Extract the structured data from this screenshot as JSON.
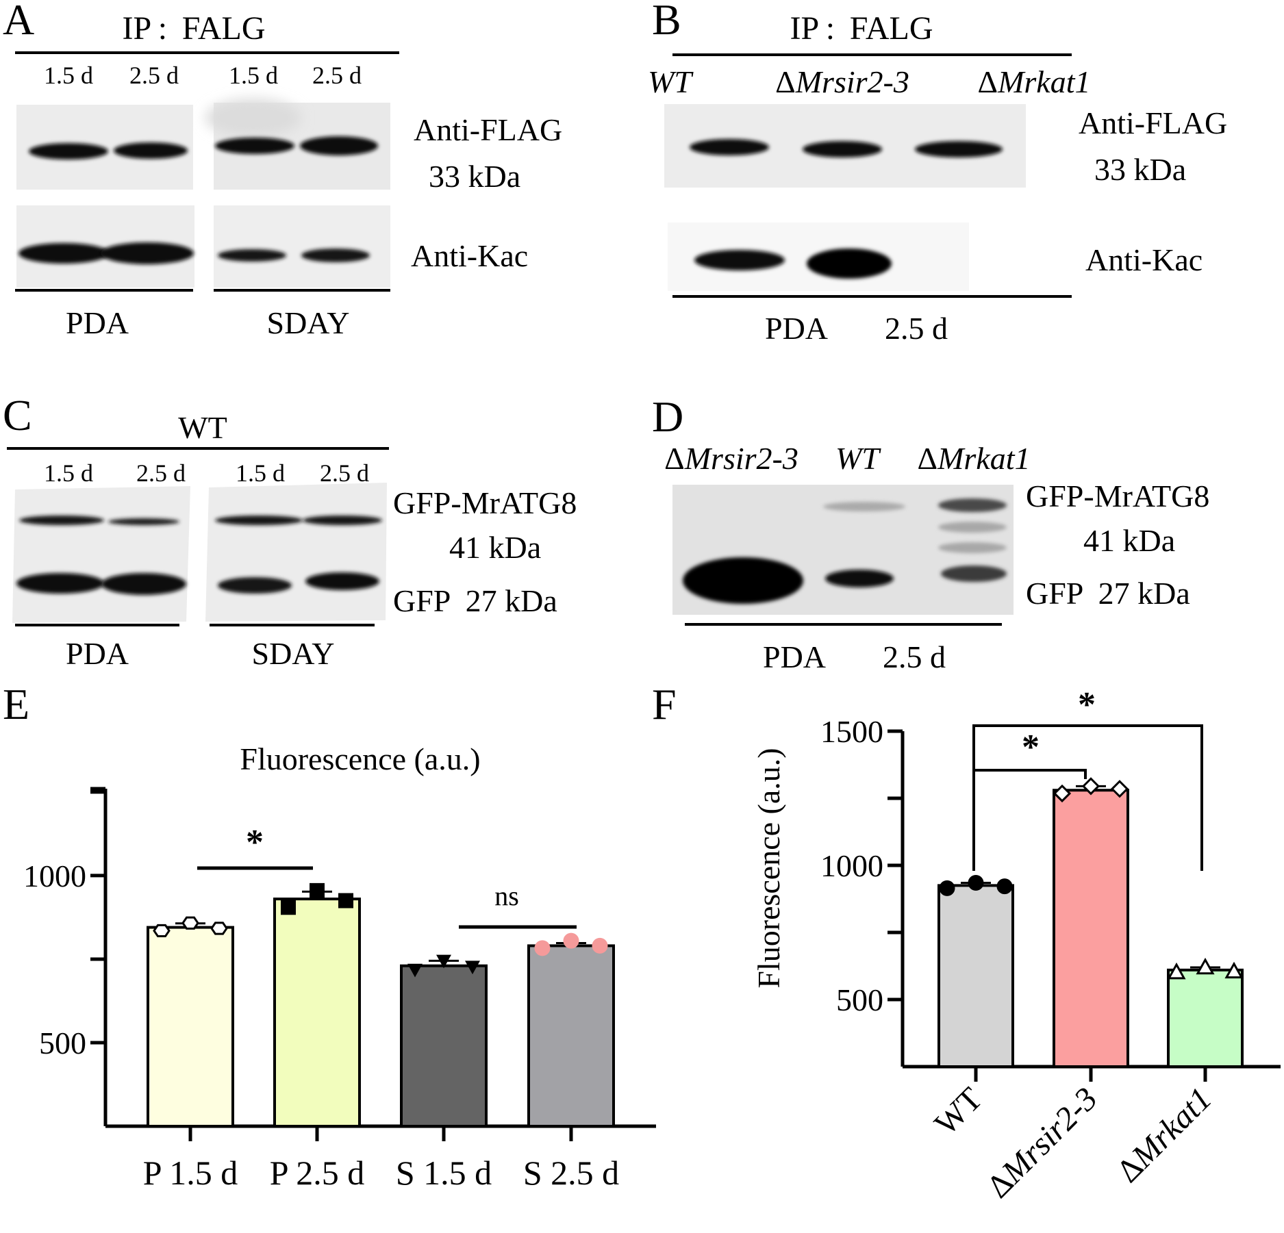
{
  "panel_a": {
    "letter": "A",
    "title": "IP :  FALG",
    "lanes": [
      "1.5 d",
      "2.5 d",
      "1.5 d",
      "2.5 d"
    ],
    "blot_labels": [
      "Anti-FLAG",
      "33 kDa",
      "Anti-Kac"
    ],
    "groups": [
      "PDA",
      "SDAY"
    ]
  },
  "panel_b": {
    "letter": "B",
    "title": "IP :  FALG",
    "strains": [
      {
        "prefix": "",
        "name": "WT"
      },
      {
        "prefix": "Δ",
        "name": "Mrsir2-3"
      },
      {
        "prefix": "Δ",
        "name": "Mrkat1"
      }
    ],
    "blot_labels": [
      "Anti-FLAG",
      "33 kDa",
      "Anti-Kac"
    ],
    "footer": [
      "PDA",
      "2.5 d"
    ]
  },
  "panel_c": {
    "letter": "C",
    "title": "WT",
    "lanes": [
      "1.5 d",
      "2.5 d",
      "1.5 d",
      "2.5 d"
    ],
    "blot_labels": [
      "GFP-MrATG8",
      "41 kDa",
      "GFP  27 kDa"
    ],
    "groups": [
      "PDA",
      "SDAY"
    ]
  },
  "panel_d": {
    "letter": "D",
    "strains": [
      {
        "prefix": "Δ",
        "name": "Mrsir2-3"
      },
      {
        "prefix": "",
        "name": "WT"
      },
      {
        "prefix": "Δ",
        "name": "Mrkat1"
      }
    ],
    "blot_labels": [
      "GFP-MrATG8",
      "41 kDa",
      "GFP  27 kDa"
    ],
    "footer": [
      "PDA",
      "2.5 d"
    ]
  },
  "panel_e": {
    "letter": "E",
    "significance": [
      "*",
      "ns"
    ],
    "chart_data": {
      "type": "bar",
      "title": "Fluorescence (a.u.)",
      "ylabel": "",
      "categories": [
        "P  1.5 d",
        "P  2.5 d",
        "S  1.5 d",
        "S  2.5 d"
      ],
      "values": [
        845,
        930,
        730,
        790
      ],
      "errors": [
        12,
        22,
        15,
        8
      ],
      "points": [
        [
          835,
          858,
          842
        ],
        [
          905,
          955,
          925
        ],
        [
          718,
          745,
          727
        ],
        [
          783,
          805,
          790
        ]
      ],
      "markers": [
        "hexagon-open",
        "square",
        "triangle-down",
        "circle"
      ],
      "colors": [
        "#fefee0",
        "#f2fdbd",
        "#646464",
        "#a2a2a6"
      ],
      "point_colors": [
        "#000000",
        "#000000",
        "#000000",
        "#f59a9a"
      ],
      "ylim": [
        250,
        1260
      ],
      "yticks": [
        500,
        1000
      ],
      "grid": false
    }
  },
  "panel_f": {
    "letter": "F",
    "significance": [
      "*",
      "*"
    ],
    "chart_data": {
      "type": "bar",
      "title": "",
      "ylabel": "Fluorescence (a.u.)",
      "categories": [
        {
          "prefix": "",
          "name": "WT"
        },
        {
          "prefix": "Δ",
          "name": "Mrsir2-3"
        },
        {
          "prefix": "Δ",
          "name": "Mrkat1"
        }
      ],
      "values": [
        925,
        1280,
        610
      ],
      "errors": [
        10,
        15,
        10
      ],
      "points": [
        [
          915,
          935,
          922
        ],
        [
          1268,
          1295,
          1285
        ],
        [
          602,
          620,
          605
        ]
      ],
      "markers": [
        "circle",
        "diamond-open",
        "triangle-open"
      ],
      "colors": [
        "#d4d4d4",
        "#fb9f9f",
        "#c6fdc6"
      ],
      "ylim": [
        250,
        1500
      ],
      "yticks": [
        500,
        1000,
        1500
      ],
      "grid": false
    }
  }
}
